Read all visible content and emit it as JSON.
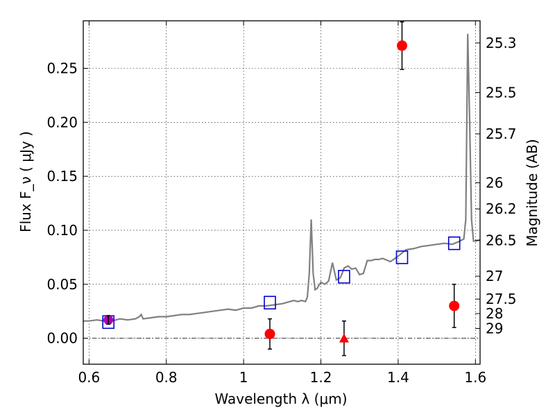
{
  "chart_data": {
    "type": "scatter",
    "title": "",
    "xlabel": "Wavelength  λ (μm)",
    "ylabel": "Flux  F_ν ( μJy )",
    "y2label": "Magnitude (AB)",
    "xlim": [
      0.585,
      1.612
    ],
    "ylim": [
      -0.024,
      0.294
    ],
    "grid": true,
    "x_ticks": [
      {
        "value": 0.6,
        "label": "0.6"
      },
      {
        "value": 0.8,
        "label": "0.8"
      },
      {
        "value": 1.0,
        "label": "1"
      },
      {
        "value": 1.2,
        "label": "1.2"
      },
      {
        "value": 1.4,
        "label": "1.4"
      },
      {
        "value": 1.6,
        "label": "1.6"
      }
    ],
    "y_ticks": [
      {
        "value": 0.0,
        "label": "0.00"
      },
      {
        "value": 0.05,
        "label": "0.05"
      },
      {
        "value": 0.1,
        "label": "0.10"
      },
      {
        "value": 0.15,
        "label": "0.15"
      },
      {
        "value": 0.2,
        "label": "0.20"
      },
      {
        "value": 0.25,
        "label": "0.25"
      }
    ],
    "mag_ticks": [
      {
        "label": "25.3",
        "flux": 0.2735
      },
      {
        "label": "25.5",
        "flux": 0.2275
      },
      {
        "label": "25.7",
        "flux": 0.1893
      },
      {
        "label": "26",
        "flux": 0.144
      },
      {
        "label": "26.2",
        "flux": 0.1198
      },
      {
        "label": "26.5",
        "flux": 0.0908
      },
      {
        "label": "27",
        "flux": 0.0575
      },
      {
        "label": "27.5",
        "flux": 0.0363
      },
      {
        "label": "28",
        "flux": 0.0229
      },
      {
        "label": "29",
        "flux": 0.0091
      }
    ],
    "series": [
      {
        "kind": "line",
        "color": "#808080",
        "x": [
          0.585,
          0.6,
          0.62,
          0.64,
          0.66,
          0.68,
          0.7,
          0.72,
          0.73,
          0.735,
          0.74,
          0.76,
          0.78,
          0.8,
          0.82,
          0.84,
          0.86,
          0.88,
          0.9,
          0.92,
          0.94,
          0.96,
          0.98,
          1.0,
          1.02,
          1.04,
          1.06,
          1.08,
          1.1,
          1.12,
          1.13,
          1.14,
          1.15,
          1.16,
          1.165,
          1.17,
          1.175,
          1.18,
          1.185,
          1.19,
          1.2,
          1.21,
          1.22,
          1.23,
          1.235,
          1.24,
          1.25,
          1.255,
          1.26,
          1.27,
          1.28,
          1.29,
          1.3,
          1.31,
          1.32,
          1.33,
          1.34,
          1.35,
          1.36,
          1.38,
          1.4,
          1.42,
          1.44,
          1.46,
          1.48,
          1.5,
          1.52,
          1.54,
          1.56,
          1.57,
          1.575,
          1.58,
          1.585,
          1.59,
          1.595,
          1.6,
          1.612
        ],
        "y": [
          0.016,
          0.016,
          0.017,
          0.016,
          0.016,
          0.018,
          0.017,
          0.018,
          0.02,
          0.022,
          0.018,
          0.019,
          0.02,
          0.02,
          0.021,
          0.022,
          0.022,
          0.023,
          0.024,
          0.025,
          0.026,
          0.027,
          0.026,
          0.028,
          0.028,
          0.03,
          0.03,
          0.031,
          0.032,
          0.034,
          0.035,
          0.034,
          0.035,
          0.034,
          0.038,
          0.06,
          0.11,
          0.06,
          0.045,
          0.046,
          0.052,
          0.05,
          0.053,
          0.07,
          0.062,
          0.054,
          0.056,
          0.06,
          0.065,
          0.067,
          0.064,
          0.065,
          0.059,
          0.06,
          0.072,
          0.072,
          0.073,
          0.073,
          0.074,
          0.071,
          0.076,
          0.082,
          0.083,
          0.085,
          0.086,
          0.087,
          0.088,
          0.087,
          0.09,
          0.092,
          0.11,
          0.282,
          0.2,
          0.11,
          0.09,
          0.09,
          0.091
        ]
      },
      {
        "kind": "open-squares",
        "color": "#0000cc",
        "x": [
          0.65,
          1.068,
          1.26,
          1.41,
          1.545
        ],
        "y": [
          0.015,
          0.033,
          0.057,
          0.075,
          0.088
        ]
      },
      {
        "kind": "circles-with-errors",
        "color": "#ff0000",
        "x": [
          1.068,
          1.41,
          1.545
        ],
        "y": [
          0.004,
          0.271,
          0.03
        ],
        "err": [
          0.014,
          0.022,
          0.02
        ]
      },
      {
        "kind": "upper-limit-triangle",
        "color": "#ff0000",
        "x": [
          1.26
        ],
        "y": [
          0.0
        ],
        "err": [
          0.016
        ]
      },
      {
        "kind": "magenta-circle",
        "color": "#aa00bb",
        "x": [
          0.65
        ],
        "y": [
          0.017
        ],
        "err": [
          0.004
        ]
      }
    ]
  }
}
